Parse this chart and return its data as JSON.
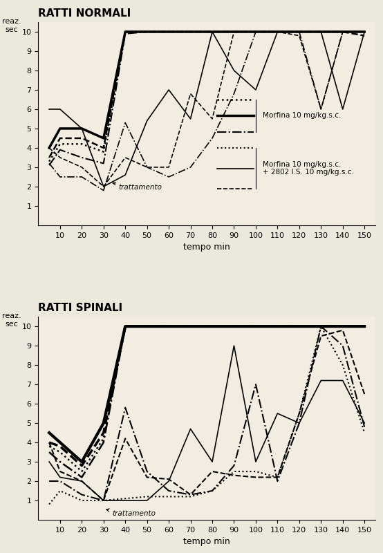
{
  "title_top": "RATTI NORMALI",
  "title_bottom": "RATTI SPINALI",
  "ylabel": "reaz.\nsec",
  "xlabel": "tempo min",
  "xlim": [
    0,
    155
  ],
  "ylim": [
    0,
    10.5
  ],
  "xticks": [
    10,
    20,
    30,
    40,
    50,
    60,
    70,
    80,
    90,
    100,
    110,
    120,
    130,
    140,
    150
  ],
  "yticks": [
    1,
    2,
    3,
    4,
    5,
    6,
    7,
    8,
    9,
    10
  ],
  "top_lines": [
    {
      "x": [
        5,
        10,
        20,
        30,
        40,
        50,
        60,
        70,
        80,
        90,
        100,
        110,
        120,
        130,
        140,
        150
      ],
      "y": [
        4.0,
        5.0,
        5.0,
        4.5,
        10.0,
        10.0,
        10.0,
        10.0,
        10.0,
        10.0,
        10.0,
        10.0,
        10.0,
        10.0,
        10.0,
        10.0
      ],
      "style": "-",
      "lw": 2.5,
      "color": "black"
    },
    {
      "x": [
        5,
        10,
        20,
        30,
        40,
        50,
        60,
        70,
        80,
        90,
        100,
        110,
        120,
        130,
        140,
        150
      ],
      "y": [
        3.5,
        4.5,
        4.5,
        4.0,
        10.0,
        10.0,
        10.0,
        10.0,
        10.0,
        10.0,
        10.0,
        10.0,
        10.0,
        10.0,
        10.0,
        9.8
      ],
      "style": "--",
      "lw": 1.8,
      "color": "black"
    },
    {
      "x": [
        5,
        10,
        20,
        30,
        40,
        50,
        60,
        70,
        80,
        90,
        100,
        110,
        120,
        130,
        140,
        150
      ],
      "y": [
        3.3,
        4.2,
        4.2,
        3.8,
        10.0,
        10.0,
        10.0,
        10.0,
        10.0,
        10.0,
        10.0,
        10.0,
        10.0,
        10.0,
        10.0,
        10.0
      ],
      "style": ":",
      "lw": 1.8,
      "color": "black"
    },
    {
      "x": [
        5,
        10,
        20,
        30,
        40,
        50,
        60,
        70,
        80,
        90,
        100,
        110,
        120,
        130,
        140,
        150
      ],
      "y": [
        3.1,
        3.9,
        3.5,
        3.2,
        9.9,
        10.0,
        10.0,
        10.0,
        10.0,
        10.0,
        10.0,
        10.0,
        10.0,
        10.0,
        10.0,
        10.0
      ],
      "style": "-.",
      "lw": 1.5,
      "color": "black"
    },
    {
      "x": [
        5,
        10,
        20,
        30,
        40,
        50,
        60,
        70,
        80,
        90,
        100,
        110,
        120,
        130,
        140,
        150
      ],
      "y": [
        6.0,
        6.0,
        5.0,
        2.0,
        2.6,
        5.4,
        7.0,
        5.5,
        10.0,
        8.0,
        7.0,
        10.0,
        10.0,
        10.0,
        6.0,
        10.0
      ],
      "style": "-",
      "lw": 1.2,
      "color": "black"
    },
    {
      "x": [
        5,
        10,
        20,
        30,
        40,
        50,
        60,
        70,
        80,
        90,
        100,
        110,
        120,
        130,
        140,
        150
      ],
      "y": [
        4.0,
        3.5,
        3.0,
        2.0,
        3.5,
        3.0,
        3.0,
        6.8,
        5.5,
        10.0,
        10.0,
        10.0,
        9.8,
        6.0,
        10.0,
        10.0
      ],
      "style": "--",
      "lw": 1.2,
      "color": "black"
    },
    {
      "x": [
        5,
        10,
        20,
        30,
        40,
        50,
        60,
        70,
        80,
        90,
        100,
        110,
        120,
        130,
        140,
        150
      ],
      "y": [
        3.2,
        2.5,
        2.5,
        1.8,
        5.3,
        3.0,
        2.5,
        3.0,
        4.5,
        6.8,
        10.0,
        10.0,
        10.0,
        6.0,
        10.0,
        10.0
      ],
      "style": "-.",
      "lw": 1.2,
      "color": "black"
    }
  ],
  "bottom_lines": [
    {
      "x": [
        5,
        10,
        20,
        30,
        40,
        50,
        60,
        70,
        80,
        90,
        100,
        110,
        120,
        130,
        140,
        150
      ],
      "y": [
        4.5,
        4.0,
        3.0,
        5.0,
        10.0,
        10.0,
        10.0,
        10.0,
        10.0,
        10.0,
        10.0,
        10.0,
        10.0,
        10.0,
        10.0,
        10.0
      ],
      "style": "-",
      "lw": 3.0,
      "color": "black"
    },
    {
      "x": [
        5,
        10,
        20,
        30,
        40,
        50,
        60,
        70,
        80,
        90,
        100,
        110,
        120,
        130,
        140,
        150
      ],
      "y": [
        4.0,
        3.8,
        2.8,
        4.5,
        10.0,
        10.0,
        10.0,
        10.0,
        10.0,
        10.0,
        10.0,
        10.0,
        10.0,
        10.0,
        10.0,
        10.0
      ],
      "style": "--",
      "lw": 2.5,
      "color": "black"
    },
    {
      "x": [
        5,
        10,
        20,
        30,
        40,
        50,
        60,
        70,
        80,
        90,
        100,
        110,
        120,
        130,
        140,
        150
      ],
      "y": [
        3.8,
        3.5,
        2.5,
        4.2,
        10.0,
        10.0,
        10.0,
        10.0,
        10.0,
        10.0,
        10.0,
        10.0,
        10.0,
        10.0,
        10.0,
        10.0
      ],
      "style": ":",
      "lw": 1.8,
      "color": "black"
    },
    {
      "x": [
        5,
        10,
        20,
        30,
        40,
        50,
        60,
        70,
        80,
        90,
        100,
        110,
        120,
        130,
        140,
        150
      ],
      "y": [
        3.5,
        3.0,
        2.2,
        4.0,
        10.0,
        10.0,
        10.0,
        10.0,
        10.0,
        10.0,
        10.0,
        10.0,
        10.0,
        10.0,
        10.0,
        10.0
      ],
      "style": "-.",
      "lw": 1.8,
      "color": "black"
    },
    {
      "x": [
        5,
        10,
        20,
        30,
        40,
        50,
        60,
        70,
        80,
        90,
        100,
        110,
        120,
        130,
        140,
        150
      ],
      "y": [
        3.0,
        2.2,
        2.0,
        1.0,
        1.0,
        1.0,
        2.0,
        4.7,
        3.0,
        9.0,
        3.0,
        5.5,
        5.0,
        7.2,
        7.2,
        5.0
      ],
      "style": "-",
      "lw": 1.2,
      "color": "black"
    },
    {
      "x": [
        5,
        10,
        20,
        30,
        40,
        50,
        60,
        70,
        80,
        90,
        100,
        110,
        120,
        130,
        140,
        150
      ],
      "y": [
        4.0,
        2.5,
        2.0,
        1.0,
        4.2,
        2.2,
        2.1,
        1.3,
        2.5,
        2.3,
        2.2,
        2.2,
        5.5,
        9.5,
        9.8,
        6.5
      ],
      "style": "--",
      "lw": 1.5,
      "color": "black"
    },
    {
      "x": [
        5,
        10,
        20,
        30,
        40,
        50,
        60,
        70,
        80,
        90,
        100,
        110,
        120,
        130,
        140,
        150
      ],
      "y": [
        2.0,
        2.0,
        1.3,
        1.0,
        5.8,
        2.5,
        1.5,
        1.3,
        1.5,
        2.8,
        7.0,
        2.0,
        5.0,
        10.0,
        9.0,
        4.8
      ],
      "style": "-.",
      "lw": 1.5,
      "color": "black"
    },
    {
      "x": [
        5,
        10,
        20,
        30,
        40,
        50,
        60,
        70,
        80,
        90,
        100,
        110,
        120,
        130,
        140,
        150
      ],
      "y": [
        0.8,
        1.5,
        1.0,
        1.0,
        1.1,
        1.2,
        1.2,
        1.2,
        1.5,
        2.5,
        2.5,
        2.2,
        5.5,
        10.0,
        8.0,
        4.5
      ],
      "style": ":",
      "lw": 1.5,
      "color": "black"
    }
  ],
  "legend_group1_label": "Morfina 10 mg/kg.s.c.",
  "legend_group2_label": "Morfina 10 mg/kg.s.c.\n+ 2802 I.S. 10 mg/kg.s.c.",
  "trattamento_top_x": 33,
  "trattamento_top_y": 2.2,
  "trattamento_bottom_x": 30,
  "trattamento_bottom_y": 0.55
}
